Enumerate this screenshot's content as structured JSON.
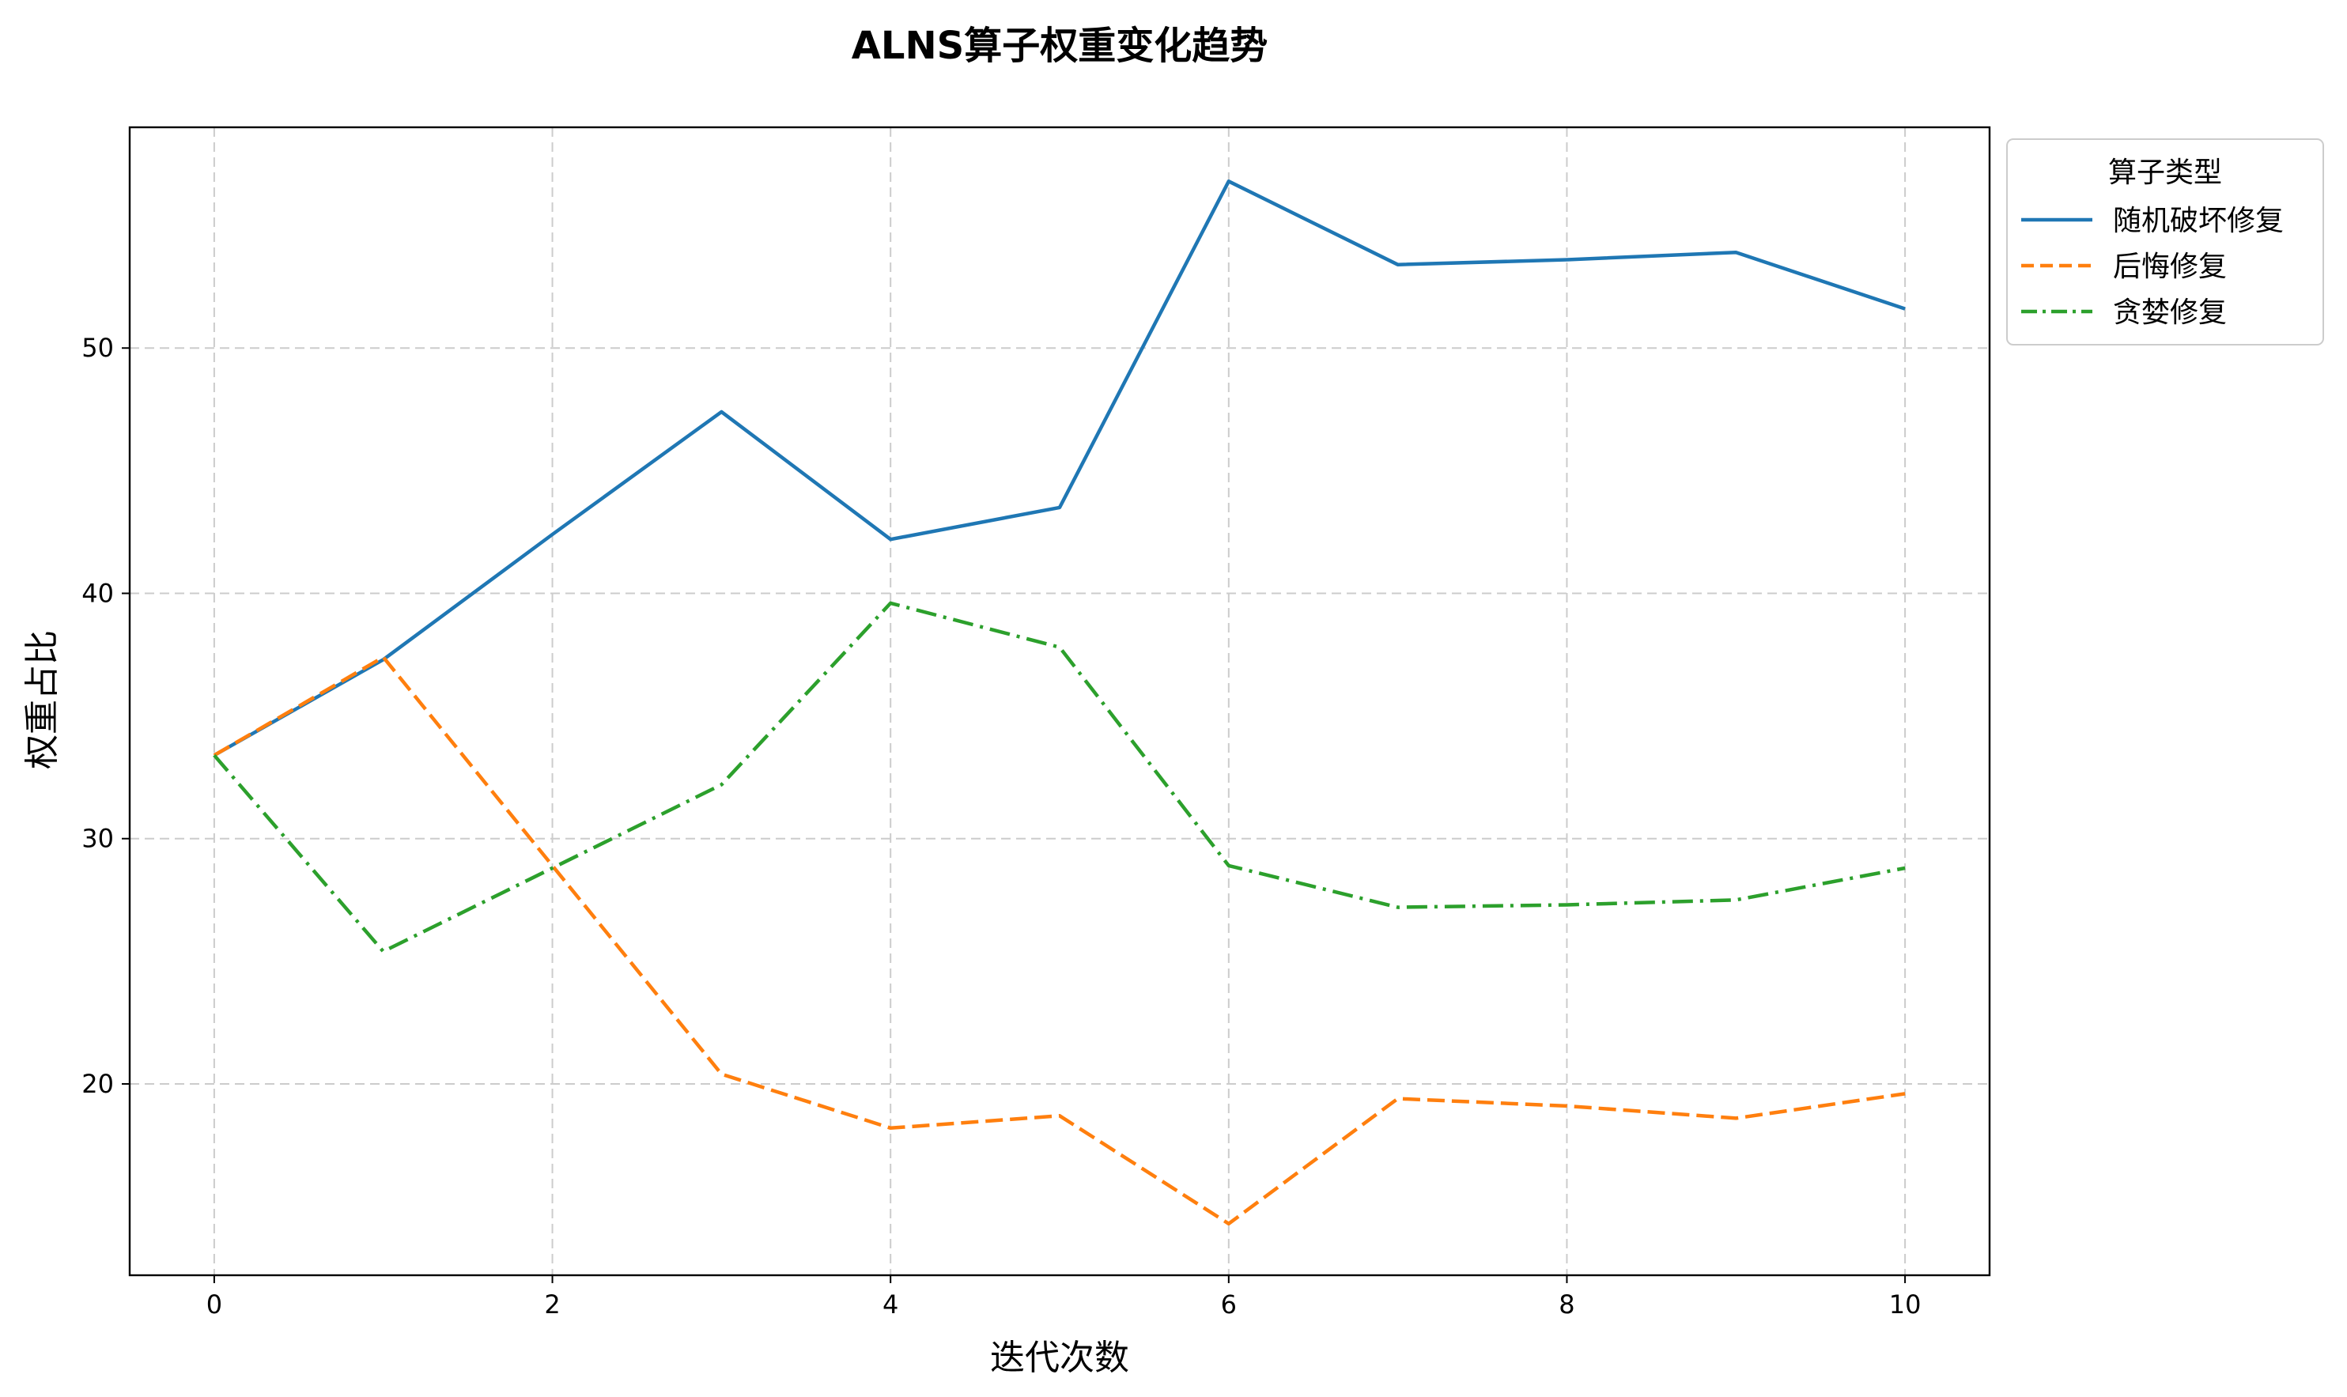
{
  "chart_data": {
    "type": "line",
    "title": "ALNS算子权重变化趋势",
    "xlabel": "迭代次数",
    "ylabel": "权重占比",
    "x": [
      0,
      1,
      2,
      3,
      4,
      5,
      6,
      7,
      8,
      9,
      10
    ],
    "xlim": [
      -0.5,
      10.5
    ],
    "ylim": [
      12.2,
      59
    ],
    "xticks": [
      0,
      2,
      4,
      6,
      8,
      10
    ],
    "yticks": [
      20,
      30,
      40,
      50
    ],
    "grid": true,
    "legend": {
      "title": "算子类型",
      "placement": "outside-top-right"
    },
    "series": [
      {
        "name": "随机破坏修复",
        "color": "#1f77b4",
        "style": "solid",
        "values": [
          33.4,
          37.3,
          42.4,
          47.4,
          42.2,
          43.5,
          56.8,
          53.4,
          53.6,
          53.9,
          51.6
        ]
      },
      {
        "name": "后悔修复",
        "color": "#ff7f0e",
        "style": "dashed",
        "values": [
          33.4,
          37.4,
          28.9,
          20.4,
          18.2,
          18.7,
          14.3,
          19.4,
          19.1,
          18.6,
          19.6
        ]
      },
      {
        "name": "贪婪修复",
        "color": "#2ca02c",
        "style": "dashdot",
        "values": [
          33.4,
          25.4,
          28.8,
          32.2,
          39.6,
          37.8,
          28.9,
          27.2,
          27.3,
          27.5,
          28.8
        ]
      }
    ]
  }
}
